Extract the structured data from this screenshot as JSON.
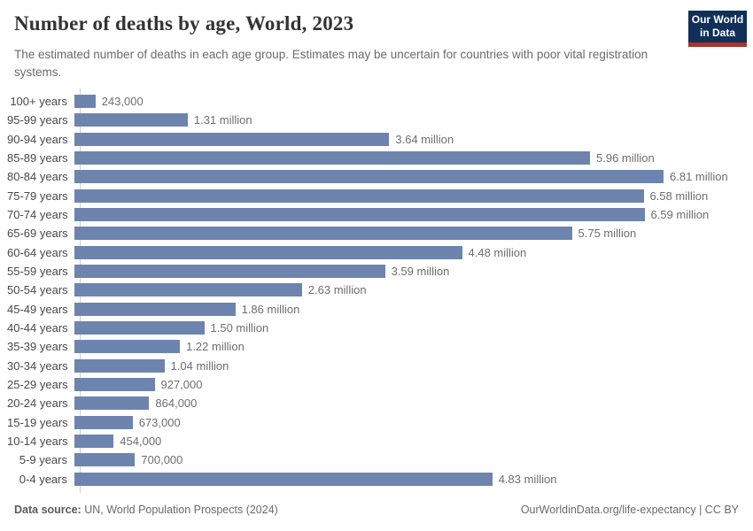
{
  "header": {
    "title": "Number of deaths by age, World, 2023",
    "subtitle": "The estimated number of deaths in each age group. Estimates may be uncertain for countries with poor vital registration systems.",
    "logo": {
      "line1": "Our World",
      "line2": "in Data",
      "bg_color": "#10305a",
      "accent_color": "#a8342b"
    }
  },
  "chart_data": {
    "type": "bar",
    "orientation": "horizontal",
    "title": "Number of deaths by age, World, 2023",
    "xlabel": "",
    "ylabel": "",
    "xlim": [
      0,
      6810000
    ],
    "grid": false,
    "legend": "none",
    "bar_color": "#6d84ae",
    "categories": [
      "100+ years",
      "95-99 years",
      "90-94 years",
      "85-89 years",
      "80-84 years",
      "75-79 years",
      "70-74 years",
      "65-69 years",
      "60-64 years",
      "55-59 years",
      "50-54 years",
      "45-49 years",
      "40-44 years",
      "35-39 years",
      "30-34 years",
      "25-29 years",
      "20-24 years",
      "15-19 years",
      "10-14 years",
      "5-9 years",
      "0-4 years"
    ],
    "values": [
      243000,
      1310000,
      3640000,
      5960000,
      6810000,
      6580000,
      6590000,
      5750000,
      4480000,
      3590000,
      2630000,
      1860000,
      1500000,
      1220000,
      1040000,
      927000,
      864000,
      673000,
      454000,
      700000,
      4830000
    ],
    "value_labels": [
      "243,000",
      "1.31 million",
      "3.64 million",
      "5.96 million",
      "6.81 million",
      "6.58 million",
      "6.59 million",
      "5.75 million",
      "4.48 million",
      "3.59 million",
      "2.63 million",
      "1.86 million",
      "1.50 million",
      "1.22 million",
      "1.04 million",
      "927,000",
      "864,000",
      "673,000",
      "454,000",
      "700,000",
      "4.83 million"
    ]
  },
  "footer": {
    "source_label": "Data source:",
    "source_text": " UN, World Population Prospects (2024)",
    "credit": "OurWorldinData.org/life-expectancy | CC BY"
  }
}
